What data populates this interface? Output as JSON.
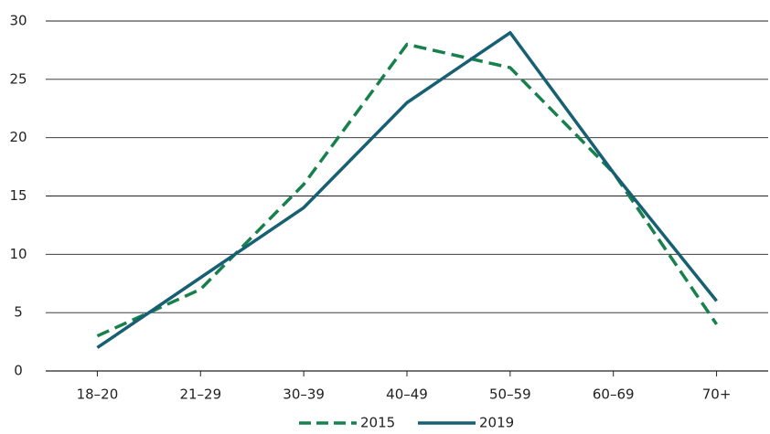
{
  "chart_data": {
    "type": "line",
    "categories": [
      "18–20",
      "21–29",
      "30–39",
      "40–49",
      "50–59",
      "60–69",
      "70+"
    ],
    "series": [
      {
        "name": "2015",
        "color": "#17804d",
        "line_style": "dashed",
        "values": [
          3,
          7,
          16,
          28,
          26,
          17,
          4
        ]
      },
      {
        "name": "2019",
        "color": "#175f73",
        "line_style": "solid",
        "values": [
          2,
          8,
          14,
          23,
          29,
          17,
          6
        ]
      }
    ],
    "ylim": [
      0,
      30
    ],
    "yticks": [
      0,
      5,
      10,
      15,
      20,
      25,
      30
    ],
    "grid": true,
    "legend": "bottom"
  }
}
